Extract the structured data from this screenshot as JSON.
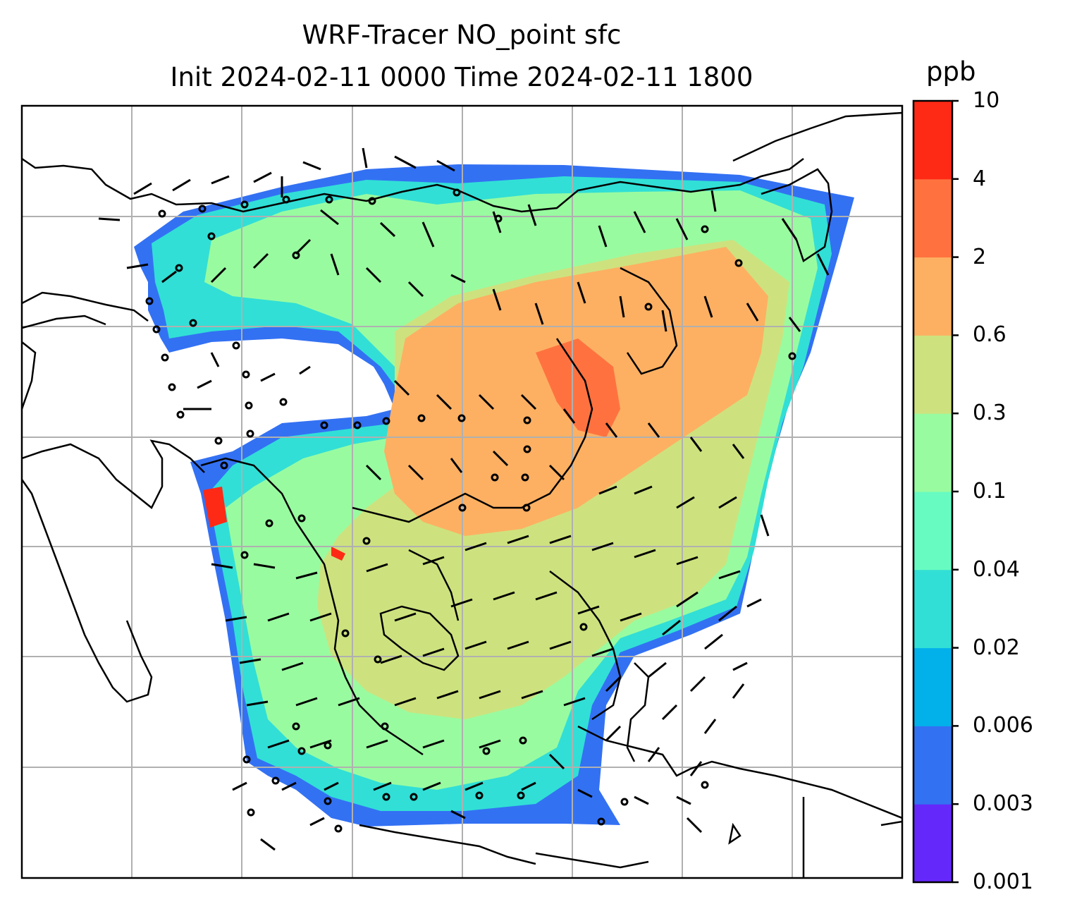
{
  "title": {
    "line1": "WRF-Tracer NO_point sfc",
    "line2": "Init 2024-02-11 0000 Time 2024-02-11 1800"
  },
  "colorbar": {
    "unit": "ppb",
    "levels": [
      "0.001",
      "0.003",
      "0.006",
      "0.02",
      "0.04",
      "0.1",
      "0.3",
      "0.6",
      "2",
      "4",
      "10"
    ],
    "colors": [
      "#6528fb",
      "#3371f3",
      "#03b1ea",
      "#31dfd6",
      "#67fbc1",
      "#99fba0",
      "#cde27e",
      "#fdb062",
      "#ff7240",
      "#ff2a16"
    ]
  },
  "map": {
    "gridlines": true,
    "coastline_color": "#000000",
    "wind_barb_color": "#000000",
    "grid_color": "#b0b0b0"
  }
}
